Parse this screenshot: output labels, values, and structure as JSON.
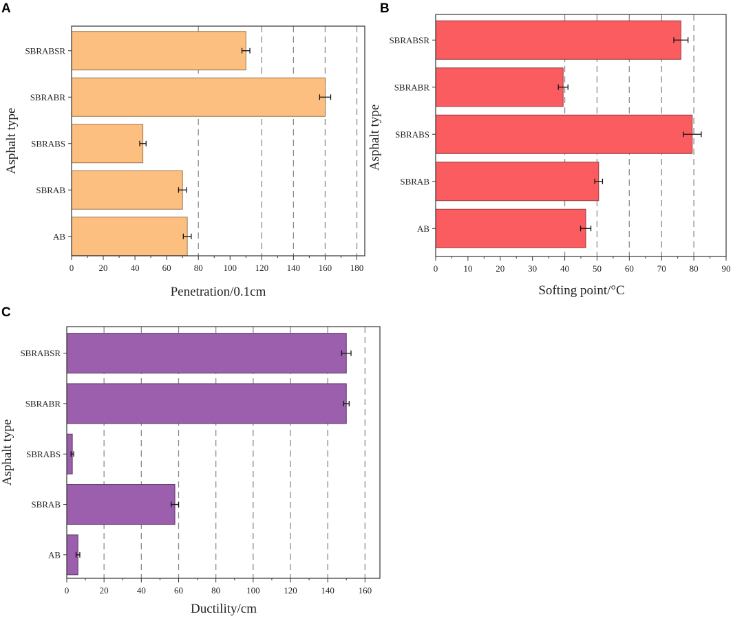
{
  "chart_data": [
    {
      "panel": "A",
      "type": "bar",
      "orientation": "horizontal",
      "categories": [
        "SBRABSR",
        "SBRABR",
        "SBRABS",
        "SBRAB",
        "AB"
      ],
      "values": [
        110,
        160,
        45,
        70,
        73
      ],
      "errors": [
        2.5,
        3.5,
        2,
        2.5,
        2.5
      ],
      "xlabel": "Penetration/0.1cm",
      "ylabel": "Asphalt type",
      "xlim": [
        0,
        185
      ],
      "xticks": [
        0,
        20,
        40,
        60,
        80,
        100,
        120,
        140,
        160,
        180
      ],
      "grid_at": [
        80,
        120,
        140,
        160,
        180
      ],
      "color": "#FDBF7F"
    },
    {
      "panel": "B",
      "type": "bar",
      "orientation": "horizontal",
      "categories": [
        "SBRABSR",
        "SBRABR",
        "SBRABS",
        "SBRAB",
        "AB"
      ],
      "values": [
        76,
        39.5,
        79.5,
        50.5,
        46.5
      ],
      "errors": [
        2.2,
        1.5,
        2.8,
        1.2,
        1.6
      ],
      "xlabel": "Softing point/°C",
      "ylabel": "Asphalt type",
      "xlim": [
        0,
        90
      ],
      "xticks": [
        0,
        10,
        20,
        30,
        40,
        50,
        60,
        70,
        80,
        90
      ],
      "grid_at": [
        40,
        50,
        60,
        70,
        80
      ],
      "color": "#FA5C5F"
    },
    {
      "panel": "C",
      "type": "bar",
      "orientation": "horizontal",
      "categories": [
        "SBRABSR",
        "SBRABR",
        "SBRABS",
        "SBRAB",
        "AB"
      ],
      "values": [
        150,
        150,
        3,
        58,
        6
      ],
      "errors": [
        2.5,
        1.5,
        0.7,
        2,
        1
      ],
      "xlabel": "Ductility/cm",
      "ylabel": "Asphalt type",
      "xlim": [
        0,
        168
      ],
      "xticks": [
        0,
        20,
        40,
        60,
        80,
        100,
        120,
        140,
        160
      ],
      "grid_at": [
        20,
        40,
        60,
        80,
        100,
        120,
        140,
        160
      ],
      "color": "#9B5FAD"
    }
  ]
}
